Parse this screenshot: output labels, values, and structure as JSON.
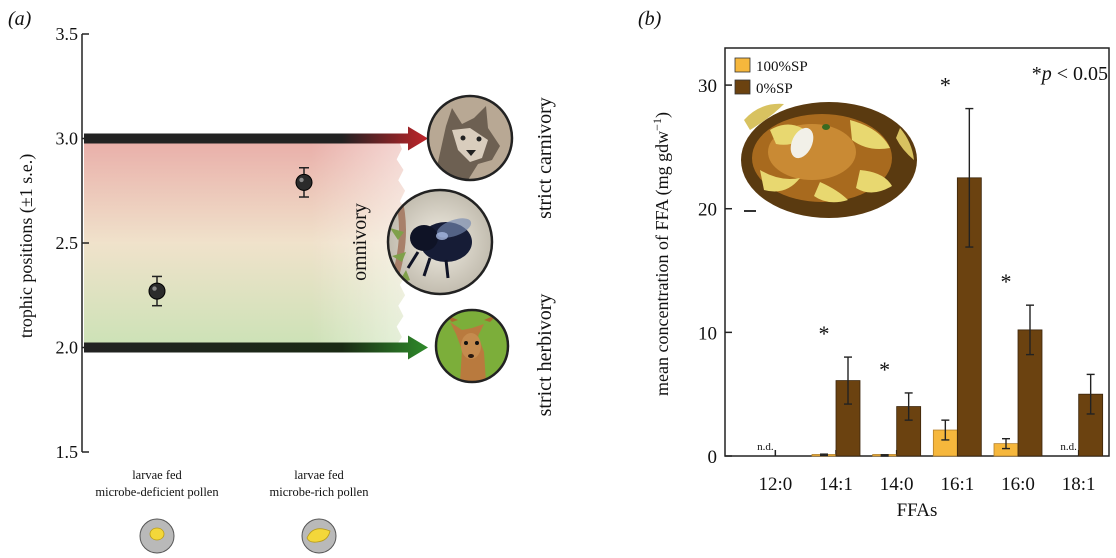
{
  "chart_data": [
    {
      "type": "scatter",
      "panel_label": "(a)",
      "ylabel": "trophic positions (±1 s.e.)",
      "ylim": [
        1.5,
        3.5
      ],
      "yticks": [
        "1.5",
        "2.0",
        "2.5",
        "3.0",
        "3.5"
      ],
      "categories": [
        {
          "line1": "larvae fed",
          "line2": "microbe-deficient pollen"
        },
        {
          "line1": "larvae fed",
          "line2": "microbe-rich pollen"
        }
      ],
      "points": [
        {
          "y": 2.27,
          "err": 0.07
        },
        {
          "y": 2.79,
          "err": 0.07
        }
      ],
      "reference_levels": [
        {
          "y": 3.0,
          "label": "strict carnivory",
          "color": "#c8102e"
        },
        {
          "y": 2.0,
          "label": "strict herbivory",
          "color": "#1b7a1b"
        }
      ],
      "band_label": "omnivory",
      "icons": [
        "wolf-icon",
        "bee-icon",
        "deer-icon",
        "larva-icon"
      ]
    },
    {
      "type": "bar",
      "panel_label": "(b)",
      "xlabel": "FFAs",
      "ylabel": "mean concentration of FFA (mg gdw",
      "ylabel_sup": "−1",
      "ylabel_close": ")",
      "ylim": [
        0,
        33
      ],
      "yticks": [
        "0",
        "10",
        "20",
        "30"
      ],
      "categories": [
        "12:0",
        "14:1",
        "14:0",
        "16:1",
        "16:0",
        "18:1"
      ],
      "series": [
        {
          "name": "100%SP",
          "color": "#f6b73c",
          "values": [
            0,
            0.1,
            0.05,
            2.1,
            1.0,
            0
          ],
          "errors": [
            0,
            0.05,
            0.05,
            0.8,
            0.4,
            0
          ]
        },
        {
          "name": "0%SP",
          "color": "#6b4210",
          "values": [
            0,
            6.1,
            4.0,
            22.5,
            10.2,
            5.0
          ],
          "errors": [
            0,
            1.9,
            1.1,
            5.6,
            2.0,
            1.6
          ]
        }
      ],
      "significance": [
        "",
        "*",
        "*",
        "*",
        "*",
        ""
      ],
      "nd": [
        "n.d.",
        "",
        "",
        "",
        "",
        "n.d."
      ],
      "annotation": {
        "star": "*",
        "p": "p",
        "rest": " < 0.05"
      },
      "legend_position": "top-left",
      "inset": "pollen-provision-photo"
    }
  ]
}
